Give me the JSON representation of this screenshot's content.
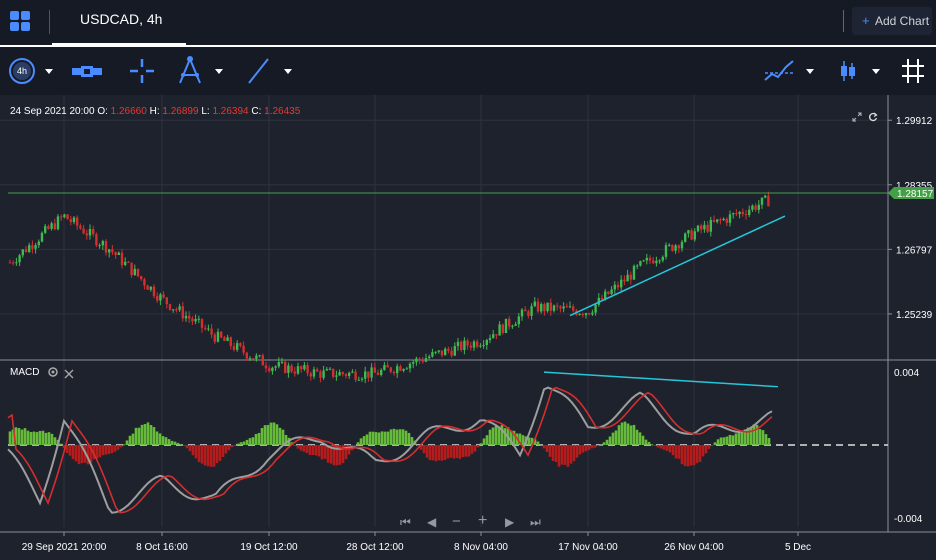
{
  "header": {
    "tab_label": "USDCAD, 4h",
    "add_chart_plus": "+",
    "add_chart_label": "Add Chart"
  },
  "toolbar": {
    "interval_badge": "4h"
  },
  "ohlc": {
    "datetime": "24 Sep 2021 20:00",
    "o_label": "O:",
    "o_value": "1.26660",
    "h_label": "H:",
    "h_value": "1.26899",
    "l_label": "L:",
    "l_value": "1.26394",
    "c_label": "C:",
    "c_value": "1.26435"
  },
  "colors": {
    "up": "#3fb950",
    "down": "#d32f2f",
    "accent": "#4a8cff",
    "trendline": "#26c6da",
    "horizontal_line": "#43a047",
    "last_price_bg": "#43a047"
  },
  "price_axis": {
    "ticks": [
      "1.29912",
      "1.28355",
      "1.26797",
      "1.25239"
    ],
    "last_price": "1.28157"
  },
  "macd": {
    "label": "MACD",
    "ticks": [
      "0.004",
      "-0.004"
    ]
  },
  "time_axis": {
    "ticks": [
      "29 Sep 2021 20:00",
      "8 Oct 16:00",
      "19 Oct 12:00",
      "28 Oct 12:00",
      "8 Nov 04:00",
      "17 Nov 04:00",
      "26 Nov 04:00",
      "5 Dec"
    ]
  },
  "nav": {
    "first": "⏮",
    "back": "◀",
    "zoom_out": "−",
    "zoom_in": "+",
    "forward": "▶",
    "last": "⏭"
  },
  "chart_data": {
    "type": "candlestick",
    "symbol": "USDCAD",
    "interval": "4h",
    "ylim": [
      1.242,
      1.304
    ],
    "horizontal_line": 1.28157,
    "close_path": [
      {
        "x": "24 Sep 2021 20:00",
        "y": 1.2644
      },
      {
        "x": "29 Sep 2021 20:00",
        "y": 1.276
      },
      {
        "x": "4 Oct",
        "y": 1.268
      },
      {
        "x": "8 Oct 16:00",
        "y": 1.256
      },
      {
        "x": "13 Oct",
        "y": 1.247
      },
      {
        "x": "19 Oct 12:00",
        "y": 1.24
      },
      {
        "x": "25 Oct",
        "y": 1.238
      },
      {
        "x": "28 Oct 12:00",
        "y": 1.238
      },
      {
        "x": "3 Nov",
        "y": 1.242
      },
      {
        "x": "8 Nov 04:00",
        "y": 1.246
      },
      {
        "x": "12 Nov",
        "y": 1.254
      },
      {
        "x": "17 Nov 04:00",
        "y": 1.253
      },
      {
        "x": "22 Nov",
        "y": 1.264
      },
      {
        "x": "26 Nov 04:00",
        "y": 1.272
      },
      {
        "x": "30 Nov",
        "y": 1.28
      }
    ],
    "trendlines": [
      {
        "from": {
          "x": "16 Nov",
          "y": 1.252
        },
        "to": {
          "x": "3 Dec",
          "y": 1.276
        }
      },
      {
        "panel": "MACD",
        "from": {
          "x": "14 Nov",
          "y": 0.004
        },
        "to": {
          "x": "3 Dec",
          "y": 0.0032
        }
      }
    ],
    "macd_ylim": [
      -0.0045,
      0.0045
    ]
  }
}
